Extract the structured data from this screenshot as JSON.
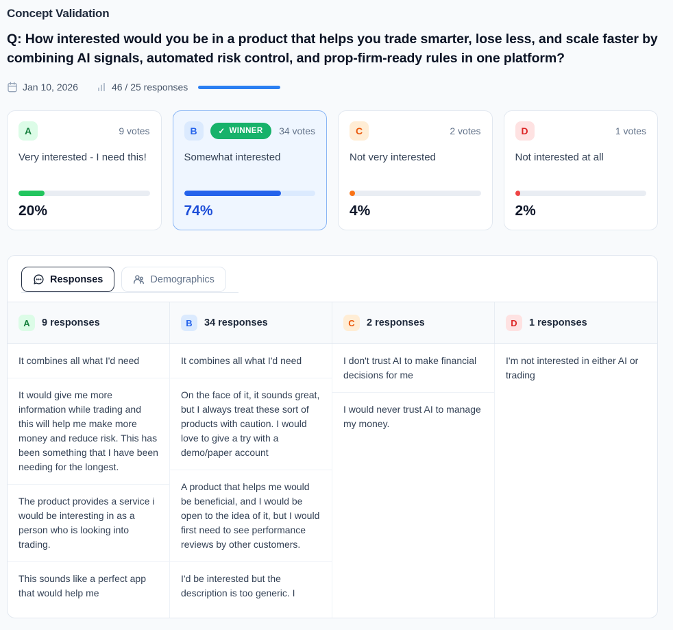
{
  "header": {
    "title": "Concept Validation",
    "question": "Q: How interested would you be in a product that helps you trade smarter, lose less, and scale faster by combining AI signals, automated risk control, and prop-firm-ready rules in one platform?",
    "date": "Jan 10, 2026",
    "responses_count": "46 / 25 responses",
    "progress_color": "#2b7ff2"
  },
  "options": [
    {
      "letter": "A",
      "votes": "9 votes",
      "label": "Very interested - I need this!",
      "percent": 20,
      "percent_label": "20%",
      "color": "#22c55e",
      "badge_bg": "#dcfce7",
      "badge_color": "#15803d",
      "winner": false
    },
    {
      "letter": "B",
      "votes": "34 votes",
      "label": "Somewhat interested",
      "percent": 74,
      "percent_label": "74%",
      "color": "#2563eb",
      "badge_bg": "#dbeafe",
      "badge_color": "#2563eb",
      "winner": true,
      "winner_label": "WINNER",
      "winner_check": "✓",
      "winner_bg": "#17b26a"
    },
    {
      "letter": "C",
      "votes": "2 votes",
      "label": "Not very interested",
      "percent": 4,
      "percent_label": "4%",
      "color": "#f97316",
      "badge_bg": "#ffedd5",
      "badge_color": "#ea580c",
      "winner": false
    },
    {
      "letter": "D",
      "votes": "1 votes",
      "label": "Not interested at all",
      "percent": 2,
      "percent_label": "2%",
      "color": "#ef4444",
      "badge_bg": "#fee2e2",
      "badge_color": "#dc2626",
      "winner": false
    }
  ],
  "tabs": [
    {
      "label": "Responses",
      "active": true
    },
    {
      "label": "Demographics",
      "active": false
    }
  ],
  "columns": [
    {
      "letter": "A",
      "header": "9 responses",
      "responses": [
        "It combines all what I'd need",
        "It would give me more information while trading and this will help me make more money and reduce risk. This has been something that I have been needing for the longest.",
        "The product provides a service i would be interesting in as a person who is looking into trading.",
        "This sounds like a perfect app that would help me"
      ]
    },
    {
      "letter": "B",
      "header": "34 responses",
      "responses": [
        "It combines all what I'd need",
        "On the face of it, it sounds great, but I always treat these sort of products with caution. I would love to give a try with a demo/paper account",
        "A product that helps me would be beneficial, and I would be open to the idea of it, but I would first need to see performance reviews by other customers.",
        "I'd be interested but the description is too generic. I"
      ]
    },
    {
      "letter": "C",
      "header": "2 responses",
      "responses": [
        "I don't trust AI to make financial decisions for me",
        "I would never trust AI to manage my money."
      ]
    },
    {
      "letter": "D",
      "header": "1 responses",
      "responses": [
        "I'm not interested in either AI or trading"
      ]
    }
  ]
}
